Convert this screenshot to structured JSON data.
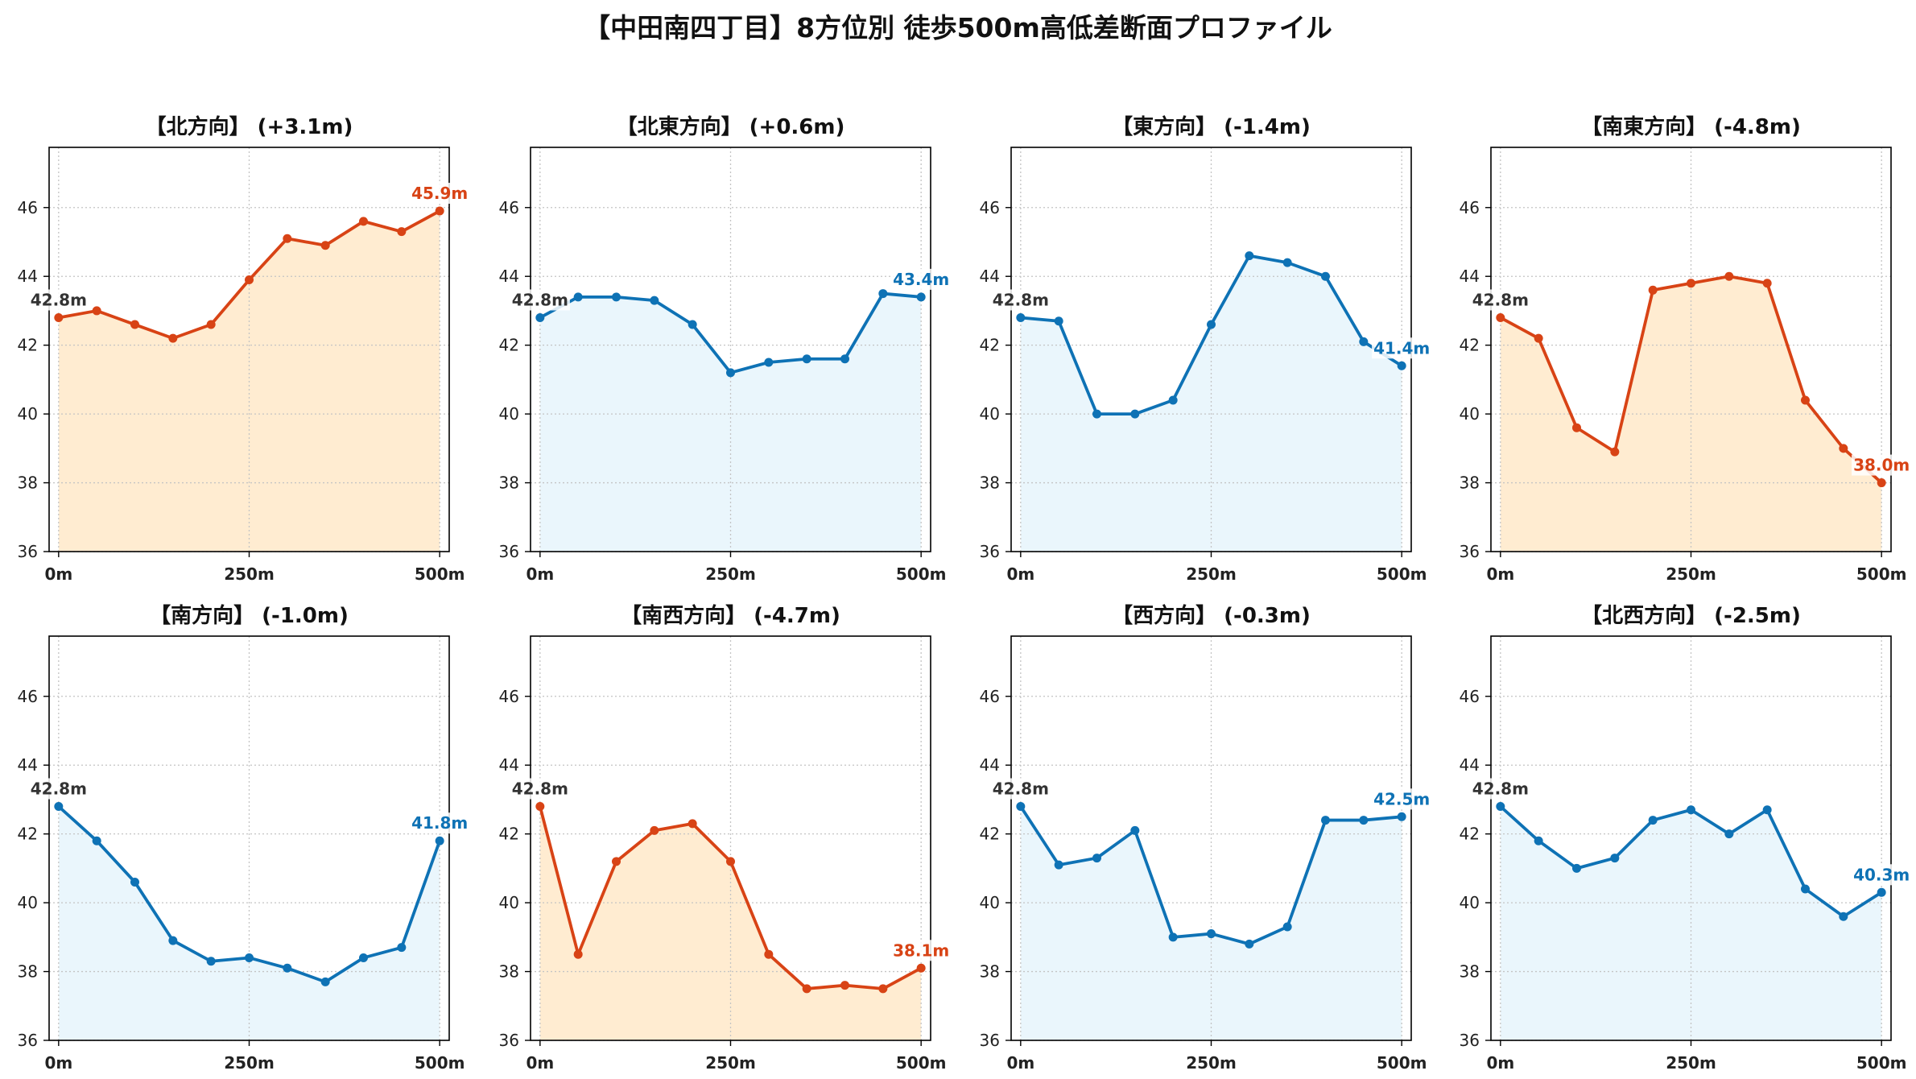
{
  "title": "【中田南四丁目】8方位別 徒歩500m高低差断面プロファイル",
  "colors": {
    "start_label": "#333333",
    "label_background": "#ffffff",
    "grid": "#c4c4c4",
    "frame": "#000000"
  },
  "chart_data": [
    {
      "type": "line",
      "title": "【北方向】 (+3.1m)",
      "x": [
        0,
        50,
        100,
        150,
        200,
        250,
        300,
        350,
        400,
        450,
        500
      ],
      "values": [
        42.8,
        43.0,
        42.6,
        42.2,
        42.6,
        43.9,
        45.1,
        44.9,
        45.6,
        45.3,
        45.9
      ],
      "xlim": [
        -12.5,
        512.5
      ],
      "ylim": [
        36,
        47.75
      ],
      "xticks": [
        0,
        250,
        500
      ],
      "xtick_labels": [
        "0m",
        "250m",
        "500m"
      ],
      "yticks": [
        36,
        38,
        40,
        42,
        44,
        46
      ],
      "grid": true,
      "line_color": "#D84315",
      "fill_color": "#FFECD1",
      "start_label": "42.8m",
      "end_label": "45.9m"
    },
    {
      "type": "line",
      "title": "【北東方向】 (+0.6m)",
      "x": [
        0,
        50,
        100,
        150,
        200,
        250,
        300,
        350,
        400,
        450,
        500
      ],
      "values": [
        42.8,
        43.4,
        43.4,
        43.3,
        42.6,
        41.2,
        41.5,
        41.6,
        41.6,
        43.5,
        43.4
      ],
      "xlim": [
        -12.5,
        512.5
      ],
      "ylim": [
        36,
        47.75
      ],
      "xticks": [
        0,
        250,
        500
      ],
      "xtick_labels": [
        "0m",
        "250m",
        "500m"
      ],
      "yticks": [
        36,
        38,
        40,
        42,
        44,
        46
      ],
      "grid": true,
      "line_color": "#0E72B5",
      "fill_color": "#EAF6FC",
      "start_label": "42.8m",
      "end_label": "43.4m"
    },
    {
      "type": "line",
      "title": "【東方向】 (-1.4m)",
      "x": [
        0,
        50,
        100,
        150,
        200,
        250,
        300,
        350,
        400,
        450,
        500
      ],
      "values": [
        42.8,
        42.7,
        40.0,
        40.0,
        40.4,
        42.6,
        44.6,
        44.4,
        44.0,
        42.1,
        41.4
      ],
      "xlim": [
        -12.5,
        512.5
      ],
      "ylim": [
        36,
        47.75
      ],
      "xticks": [
        0,
        250,
        500
      ],
      "xtick_labels": [
        "0m",
        "250m",
        "500m"
      ],
      "yticks": [
        36,
        38,
        40,
        42,
        44,
        46
      ],
      "grid": true,
      "line_color": "#0E72B5",
      "fill_color": "#EAF6FC",
      "start_label": "42.8m",
      "end_label": "41.4m"
    },
    {
      "type": "line",
      "title": "【南東方向】 (-4.8m)",
      "x": [
        0,
        50,
        100,
        150,
        200,
        250,
        300,
        350,
        400,
        450,
        500
      ],
      "values": [
        42.8,
        42.2,
        39.6,
        38.9,
        43.6,
        43.8,
        44.0,
        43.8,
        40.4,
        39.0,
        38.0
      ],
      "xlim": [
        -12.5,
        512.5
      ],
      "ylim": [
        36,
        47.75
      ],
      "xticks": [
        0,
        250,
        500
      ],
      "xtick_labels": [
        "0m",
        "250m",
        "500m"
      ],
      "yticks": [
        36,
        38,
        40,
        42,
        44,
        46
      ],
      "grid": true,
      "line_color": "#D84315",
      "fill_color": "#FFECD1",
      "start_label": "42.8m",
      "end_label": "38.0m"
    },
    {
      "type": "line",
      "title": "【南方向】 (-1.0m)",
      "x": [
        0,
        50,
        100,
        150,
        200,
        250,
        300,
        350,
        400,
        450,
        500
      ],
      "values": [
        42.8,
        41.8,
        40.6,
        38.9,
        38.3,
        38.4,
        38.1,
        37.7,
        38.4,
        38.7,
        41.8
      ],
      "xlim": [
        -12.5,
        512.5
      ],
      "ylim": [
        36,
        47.75
      ],
      "xticks": [
        0,
        250,
        500
      ],
      "xtick_labels": [
        "0m",
        "250m",
        "500m"
      ],
      "yticks": [
        36,
        38,
        40,
        42,
        44,
        46
      ],
      "grid": true,
      "line_color": "#0E72B5",
      "fill_color": "#EAF6FC",
      "start_label": "42.8m",
      "end_label": "41.8m"
    },
    {
      "type": "line",
      "title": "【南西方向】 (-4.7m)",
      "x": [
        0,
        50,
        100,
        150,
        200,
        250,
        300,
        350,
        400,
        450,
        500
      ],
      "values": [
        42.8,
        38.5,
        41.2,
        42.1,
        42.3,
        41.2,
        38.5,
        37.5,
        37.6,
        37.5,
        38.1
      ],
      "xlim": [
        -12.5,
        512.5
      ],
      "ylim": [
        36,
        47.75
      ],
      "xticks": [
        0,
        250,
        500
      ],
      "xtick_labels": [
        "0m",
        "250m",
        "500m"
      ],
      "yticks": [
        36,
        38,
        40,
        42,
        44,
        46
      ],
      "grid": true,
      "line_color": "#D84315",
      "fill_color": "#FFECD1",
      "start_label": "42.8m",
      "end_label": "38.1m"
    },
    {
      "type": "line",
      "title": "【西方向】 (-0.3m)",
      "x": [
        0,
        50,
        100,
        150,
        200,
        250,
        300,
        350,
        400,
        450,
        500
      ],
      "values": [
        42.8,
        41.1,
        41.3,
        42.1,
        39.0,
        39.1,
        38.8,
        39.3,
        42.4,
        42.4,
        42.5
      ],
      "xlim": [
        -12.5,
        512.5
      ],
      "ylim": [
        36,
        47.75
      ],
      "xticks": [
        0,
        250,
        500
      ],
      "xtick_labels": [
        "0m",
        "250m",
        "500m"
      ],
      "yticks": [
        36,
        38,
        40,
        42,
        44,
        46
      ],
      "grid": true,
      "line_color": "#0E72B5",
      "fill_color": "#EAF6FC",
      "start_label": "42.8m",
      "end_label": "42.5m"
    },
    {
      "type": "line",
      "title": "【北西方向】 (-2.5m)",
      "x": [
        0,
        50,
        100,
        150,
        200,
        250,
        300,
        350,
        400,
        450,
        500
      ],
      "values": [
        42.8,
        41.8,
        41.0,
        41.3,
        42.4,
        42.7,
        42.0,
        42.7,
        40.4,
        39.6,
        40.3
      ],
      "xlim": [
        -12.5,
        512.5
      ],
      "ylim": [
        36,
        47.75
      ],
      "xticks": [
        0,
        250,
        500
      ],
      "xtick_labels": [
        "0m",
        "250m",
        "500m"
      ],
      "yticks": [
        36,
        38,
        40,
        42,
        44,
        46
      ],
      "grid": true,
      "line_color": "#0E72B5",
      "fill_color": "#EAF6FC",
      "start_label": "42.8m",
      "end_label": "40.3m"
    }
  ]
}
